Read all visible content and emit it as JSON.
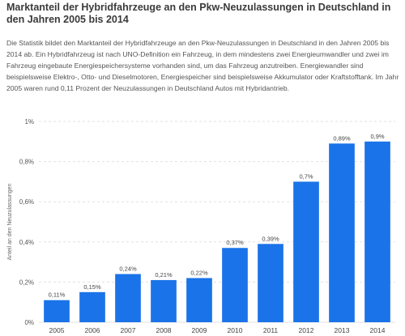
{
  "header": {
    "title": "Marktanteil der Hybridfahrzeuge an den Pkw-Neuzulassungen in Deutschland in den Jahren 2005 bis 2014",
    "description": "Die Statistik bildet den Marktanteil der Hybridfahrzeuge an den Pkw-Neuzulassungen in Deutschland in den Jahren 2005 bis 2014 ab. Ein Hybridfahrzeug ist nach UNO-Definition ein Fahrzeug, in dem mindestens zwei Energieumwandler und zwei im Fahrzeug eingebaute Energiespeichersysteme vorhanden sind, um das Fahrzeug anzutreiben. Energiewandler sind beispielsweise Elektro-, Otto- und Dieselmotoren, Energiespeicher sind beispielsweise Akkumulator oder Kraftstofftank. Im Jahr 2005 waren rund 0,11 Prozent der Neuzulassungen in Deutschland Autos mit Hybridantrieb."
  },
  "chart_data": {
    "type": "bar",
    "categories": [
      "2005",
      "2006",
      "2007",
      "2008",
      "2009",
      "2010",
      "2011",
      "2012",
      "2013",
      "2014"
    ],
    "values": [
      0.11,
      0.15,
      0.24,
      0.21,
      0.22,
      0.37,
      0.39,
      0.7,
      0.89,
      0.9
    ],
    "value_labels": [
      "0,11%",
      "0,15%",
      "0,24%",
      "0,21%",
      "0,22%",
      "0,37%",
      "0,39%",
      "0,7%",
      "0,89%",
      "0,9%"
    ],
    "ylabel": "Anteil an den Neuzulassungen",
    "ylim": [
      0,
      1
    ],
    "yticks": [
      0,
      0.2,
      0.4,
      0.6,
      0.8,
      1
    ],
    "ytick_labels": [
      "0%",
      "0,2%",
      "0,4%",
      "0,6%",
      "0,8%",
      "1%"
    ],
    "grid": true,
    "bar_color": "#1a73e8",
    "grid_color": "#e0e0e0"
  }
}
